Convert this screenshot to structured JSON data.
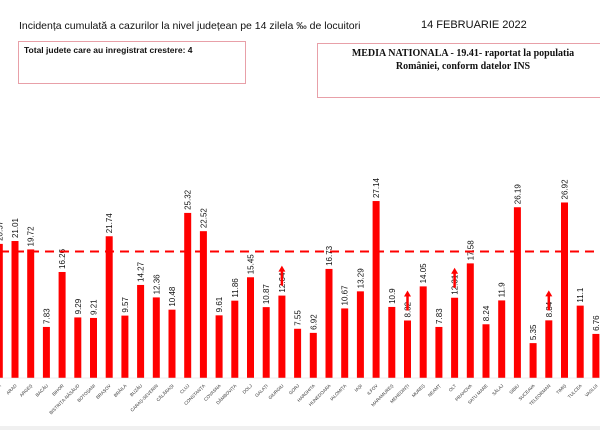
{
  "header": {
    "title": "Incidența cumulată a cazurilor la nivel județean pe 14 zilela ‰ de locuitori",
    "date": "14 FEBRUARIE 2022",
    "increase_note": "Total judete care au inregistrat crestere: 4",
    "national_line1": "MEDIA NATIONALA - 19.41-  raportat la populatia",
    "national_line2": "României, conform datelor INS"
  },
  "chart_data": {
    "type": "bar",
    "title": "Incidența cumulată a cazurilor la nivel județean pe 14 zilela ‰ de locuitori",
    "categories": [
      "ALBA",
      "ARAD",
      "ARGEȘ",
      "BACĂU",
      "BIHOR",
      "BISTRIȚA-NĂSĂUD",
      "BOTOȘANI",
      "BRAȘOV",
      "BRĂILA",
      "BUZĂU",
      "CARAȘ-SEVERIN",
      "CĂLĂRAȘI",
      "CLUJ",
      "CONSTANȚA",
      "COVASNA",
      "DÂMBOVIȚA",
      "DOLJ",
      "GALAȚI",
      "GIURGIU",
      "GORJ",
      "HARGHITA",
      "HUNEDOARA",
      "IALOMIȚA",
      "IAȘI",
      "ILFOV",
      "MARAMUREȘ",
      "MEHEDINȚI",
      "MUREȘ",
      "NEAMȚ",
      "OLT",
      "PRAHOVA",
      "SATU MARE",
      "SĂLAJ",
      "SIBIU",
      "SUCEAVA",
      "TELEORMAN",
      "TIMIȘ",
      "TULCEA",
      "VASLUI"
    ],
    "values": [
      20.57,
      21.01,
      19.72,
      7.83,
      16.26,
      9.29,
      9.21,
      21.74,
      9.57,
      14.27,
      12.36,
      10.48,
      25.32,
      22.52,
      9.61,
      11.86,
      15.45,
      10.87,
      12.64,
      7.55,
      6.92,
      16.73,
      10.67,
      13.29,
      27.14,
      10.9,
      8.82,
      14.05,
      7.83,
      12.31,
      17.58,
      8.24,
      11.9,
      26.19,
      5.35,
      8.84,
      26.92,
      11.1,
      6.76
    ],
    "increased": [
      "GIURGIU",
      "MEHEDINȚI",
      "OLT",
      "TELEORMAN"
    ],
    "reference_line": {
      "value": 19.41,
      "style": "dashed"
    },
    "ylim": [
      0,
      30
    ],
    "bar_color": "#ff0000",
    "grid": false,
    "legend": "none"
  }
}
